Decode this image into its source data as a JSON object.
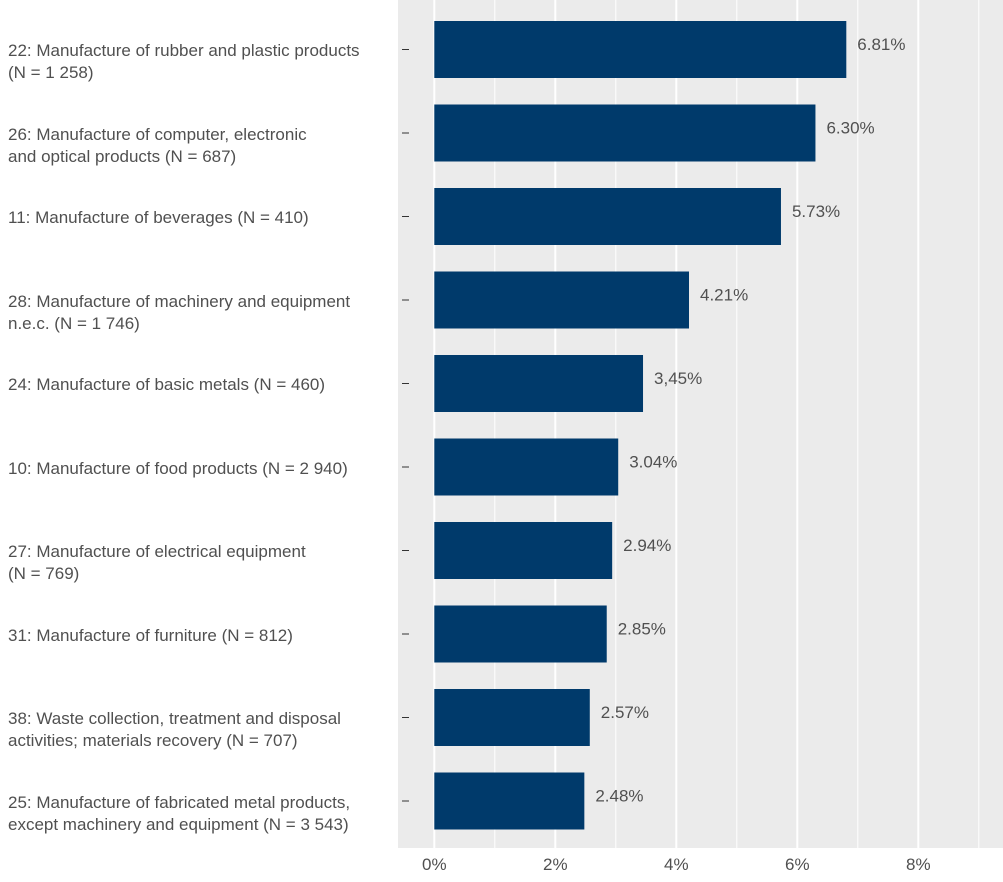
{
  "chart_data": {
    "type": "bar",
    "orientation": "horizontal",
    "title": "",
    "xlabel": "",
    "ylabel": "",
    "categories": [
      "22: Manufacture of rubber and plastic products\n(N = 1 258)",
      "26: Manufacture of computer, electronic\nand optical products (N = 687)",
      "11: Manufacture of beverages (N = 410)",
      "28: Manufacture of machinery and equipment\nn.e.c. (N = 1 746)",
      "24: Manufacture of basic metals (N = 460)",
      "10: Manufacture of food products (N = 2 940)",
      "27: Manufacture of electrical equipment\n(N = 769)",
      "31: Manufacture of furniture (N = 812)",
      "38: Waste collection, treatment and disposal\nactivities; materials recovery (N = 707)",
      "25: Manufacture of fabricated metal products,\nexcept machinery and equipment (N = 3 543)"
    ],
    "values": [
      6.81,
      6.3,
      5.73,
      4.21,
      3.45,
      3.04,
      2.94,
      2.85,
      2.57,
      2.48
    ],
    "data_labels": [
      "6.81%",
      "6.30%",
      "5.73%",
      "4.21%",
      "3,45%",
      "3.04%",
      "2.94%",
      "2.85%",
      "2.57%",
      "2.48%"
    ],
    "x_ticks": [
      "0%",
      "2%",
      "4%",
      "6%",
      "8%"
    ],
    "x_tick_values": [
      0,
      2,
      4,
      6,
      8
    ],
    "xlim": [
      -0.6,
      9.4
    ],
    "grid": true,
    "legend": "none",
    "colors": {
      "bar": "#003a6b",
      "panel_background": "#ebebeb",
      "grid_line": "#ffffff",
      "label_text": "#505050"
    }
  }
}
